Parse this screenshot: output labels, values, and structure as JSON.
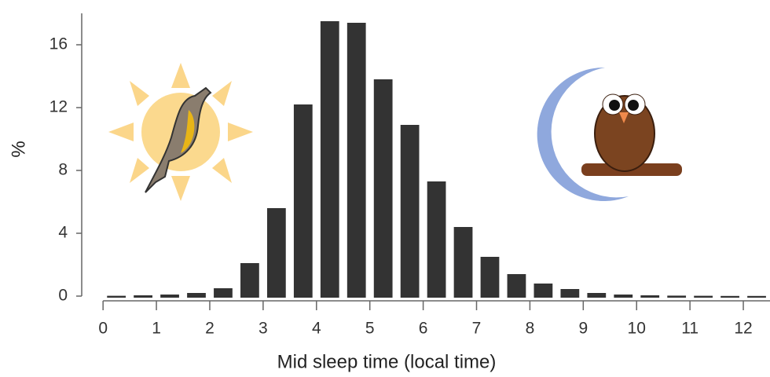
{
  "chart_data": {
    "type": "histogram",
    "bins": [
      0,
      0.5,
      1,
      1.5,
      2,
      2.5,
      3,
      3.5,
      4,
      4.5,
      5,
      5.5,
      6,
      6.5,
      7,
      7.5,
      8,
      8.5,
      9,
      9.5,
      10,
      10.5,
      11,
      11.5,
      12,
      12.5
    ],
    "values": [
      0.02,
      0.05,
      0.1,
      0.2,
      0.5,
      2.1,
      5.6,
      12.2,
      17.5,
      17.4,
      13.8,
      10.9,
      7.3,
      4.4,
      2.5,
      1.4,
      0.8,
      0.45,
      0.2,
      0.1,
      0.05,
      0.03,
      0.02,
      0.01,
      0.01
    ],
    "color": "#333333",
    "x_label": "Mid sleep time (local time)",
    "y_label": "%",
    "xlim": [
      -0.4,
      12.5
    ],
    "xticks": [
      0,
      1,
      2,
      3,
      4,
      5,
      6,
      7,
      8,
      9,
      10,
      11,
      12
    ],
    "ylim": [
      0,
      18
    ],
    "yticks": [
      0,
      4,
      8,
      12,
      16
    ]
  }
}
